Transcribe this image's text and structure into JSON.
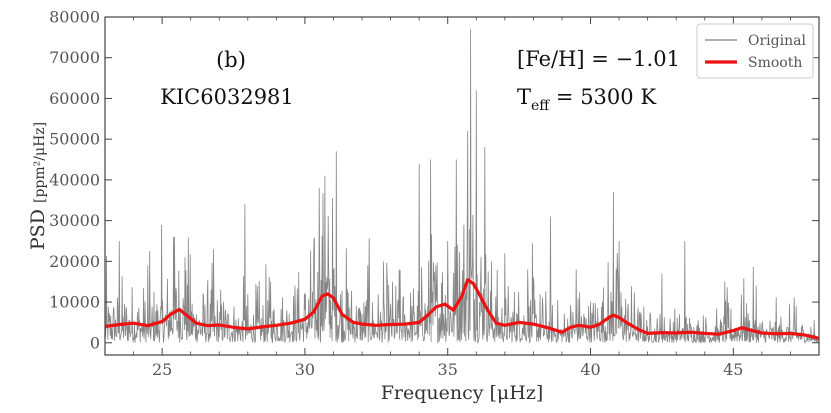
{
  "chart_data": {
    "type": "line",
    "xlabel": "Frequency [μHz]",
    "ylabel": "PSD",
    "ylabel_unit": "[ppm²/μHz]",
    "xlim": [
      23.0,
      48.0
    ],
    "ylim": [
      -3000,
      80000
    ],
    "x_ticks": [
      25,
      30,
      35,
      40,
      45
    ],
    "y_ticks": [
      0,
      10000,
      20000,
      30000,
      40000,
      50000,
      60000,
      70000,
      80000
    ],
    "grid": false,
    "legend_position": "top-right",
    "annotations": {
      "panel": "(b)",
      "star": "KIC6032981",
      "feh": "[Fe/H] = −1.01",
      "teff_prefix": "T",
      "teff_sub": "eff",
      "teff_value": " = 5300 K"
    },
    "series": [
      {
        "name": "Original",
        "color": "#808080",
        "style": "noisy-spectrum",
        "peaks": [
          {
            "x": 23.5,
            "y": 25000
          },
          {
            "x": 24.5,
            "y": 19000
          },
          {
            "x": 25.4,
            "y": 26000
          },
          {
            "x": 25.8,
            "y": 21000
          },
          {
            "x": 26.8,
            "y": 23000
          },
          {
            "x": 27.9,
            "y": 34000
          },
          {
            "x": 28.8,
            "y": 15000
          },
          {
            "x": 30.5,
            "y": 38000
          },
          {
            "x": 30.7,
            "y": 41000
          },
          {
            "x": 31.1,
            "y": 47000
          },
          {
            "x": 32.2,
            "y": 19000
          },
          {
            "x": 33.3,
            "y": 18000
          },
          {
            "x": 34.0,
            "y": 44000
          },
          {
            "x": 34.4,
            "y": 45000
          },
          {
            "x": 35.0,
            "y": 25000
          },
          {
            "x": 35.3,
            "y": 45000
          },
          {
            "x": 35.7,
            "y": 52000
          },
          {
            "x": 35.8,
            "y": 77000
          },
          {
            "x": 36.0,
            "y": 62000
          },
          {
            "x": 36.3,
            "y": 48000
          },
          {
            "x": 37.0,
            "y": 22000
          },
          {
            "x": 37.8,
            "y": 18000
          },
          {
            "x": 38.6,
            "y": 31000
          },
          {
            "x": 39.5,
            "y": 18000
          },
          {
            "x": 40.8,
            "y": 37000
          },
          {
            "x": 41.0,
            "y": 25000
          },
          {
            "x": 42.5,
            "y": 17000
          },
          {
            "x": 43.3,
            "y": 25000
          },
          {
            "x": 44.7,
            "y": 15000
          },
          {
            "x": 45.8,
            "y": 14000
          },
          {
            "x": 47.2,
            "y": 9000
          }
        ]
      },
      {
        "name": "Smooth",
        "color": "#ee1111",
        "x": [
          23.0,
          23.5,
          24.0,
          24.5,
          25.0,
          25.3,
          25.6,
          25.9,
          26.2,
          26.6,
          27.0,
          27.5,
          28.0,
          28.5,
          29.0,
          29.5,
          30.0,
          30.3,
          30.6,
          30.8,
          31.0,
          31.3,
          31.7,
          32.0,
          32.5,
          33.0,
          33.5,
          34.0,
          34.3,
          34.6,
          34.9,
          35.2,
          35.5,
          35.7,
          35.9,
          36.1,
          36.4,
          36.7,
          37.0,
          37.5,
          38.0,
          38.5,
          39.0,
          39.3,
          39.6,
          40.0,
          40.3,
          40.6,
          40.8,
          41.0,
          41.3,
          41.7,
          42.0,
          42.5,
          43.0,
          43.5,
          44.0,
          44.5,
          45.0,
          45.3,
          45.6,
          46.0,
          46.5,
          47.0,
          47.5,
          48.0
        ],
        "values": [
          4000,
          4500,
          4800,
          4200,
          5200,
          7000,
          8200,
          6500,
          4800,
          4200,
          4400,
          3800,
          3400,
          3900,
          4300,
          4800,
          5800,
          7500,
          11500,
          12000,
          11000,
          7000,
          5000,
          4600,
          4300,
          4500,
          4600,
          5000,
          6800,
          8800,
          9500,
          8000,
          11500,
          15500,
          14500,
          12000,
          8000,
          4800,
          4300,
          5000,
          4600,
          3700,
          2600,
          3800,
          4300,
          3800,
          4500,
          6000,
          6800,
          6200,
          4800,
          3200,
          2300,
          2500,
          2400,
          2600,
          2300,
          2100,
          3000,
          3700,
          3100,
          2400,
          2200,
          2300,
          1900,
          1100
        ]
      }
    ]
  }
}
